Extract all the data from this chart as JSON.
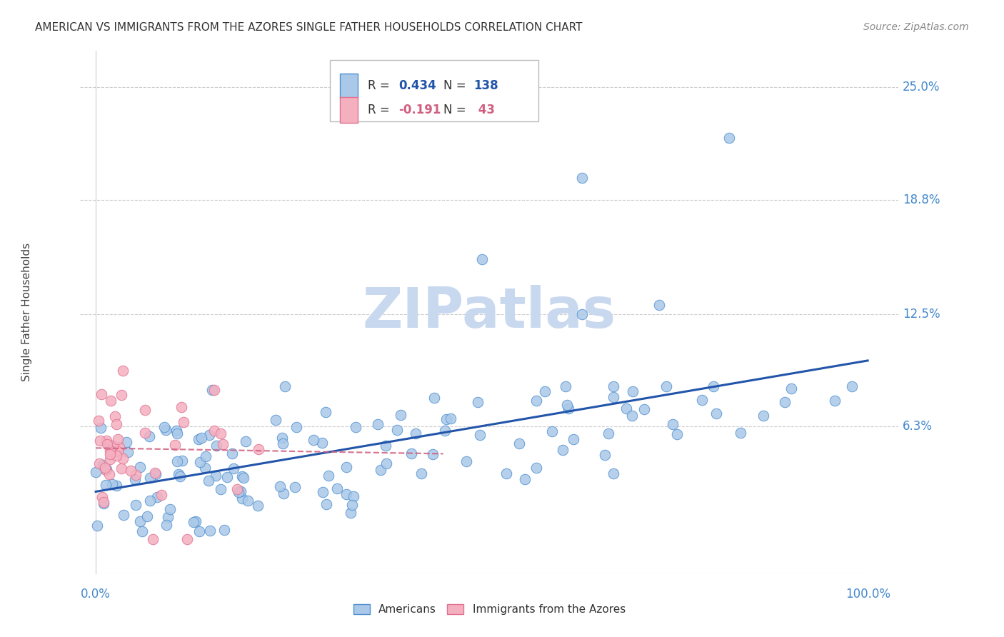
{
  "title": "AMERICAN VS IMMIGRANTS FROM THE AZORES SINGLE FATHER HOUSEHOLDS CORRELATION CHART",
  "source": "Source: ZipAtlas.com",
  "ylabel": "Single Father Households",
  "ytick_vals": [
    0.063,
    0.125,
    0.188,
    0.25
  ],
  "ytick_labels": [
    "6.3%",
    "12.5%",
    "18.8%",
    "25.0%"
  ],
  "ylim": [
    -0.018,
    0.27
  ],
  "xlim": [
    -0.02,
    1.04
  ],
  "watermark": "ZIPatlas",
  "blue_color": "#aac8e8",
  "blue_edge_color": "#5090d0",
  "blue_line_color": "#2255aa",
  "pink_color": "#f5b0c0",
  "pink_edge_color": "#e07090",
  "pink_line_color": "#d06080",
  "title_color": "#333333",
  "source_color": "#888888",
  "axis_label_color": "#4488cc",
  "grid_color": "#cccccc",
  "legend_r1": "0.434",
  "legend_n1": "138",
  "legend_r2": "-0.191",
  "legend_n2": " 43"
}
